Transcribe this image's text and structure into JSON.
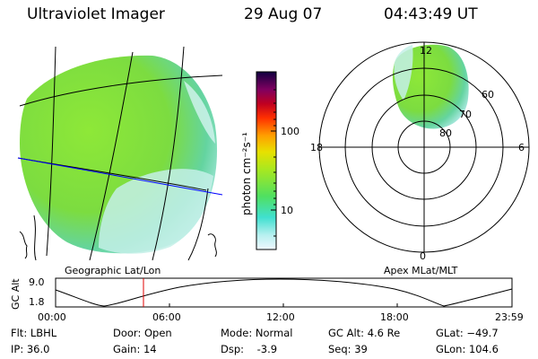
{
  "header": {
    "title": "Ultraviolet Imager",
    "date": "29 Aug 07",
    "time": "04:43:49 UT"
  },
  "colorbar": {
    "unit_label": "photon cm⁻²s⁻¹",
    "ticks": [
      "100",
      "10"
    ],
    "scale": "log"
  },
  "left_map": {
    "label": "Geographic Lat/Lon"
  },
  "polar_plot": {
    "label": "Apex MLat/MLT",
    "mlt_labels": [
      "12",
      "18",
      "6",
      "0"
    ],
    "lat_labels": [
      "60",
      "70",
      "80"
    ]
  },
  "altitude_plot": {
    "ylabel": "GC Alt",
    "yticks": [
      "9.0",
      "1.8"
    ],
    "xticks": [
      "00:00",
      "06:00",
      "12:00",
      "18:00",
      "23:59"
    ],
    "marker_color": "#e00000"
  },
  "info": {
    "flt": "Flt: LBHL",
    "ip": "IP: 36.0",
    "door": "Door: Open",
    "gain": "Gain: 14",
    "mode": "Mode: Normal",
    "dsp": "Dsp:    -3.9",
    "gc_alt": "GC Alt: 4.6 Re",
    "seq": "Seq: 39",
    "glat": "GLat: −49.7",
    "glon": "GLon: 104.6"
  }
}
